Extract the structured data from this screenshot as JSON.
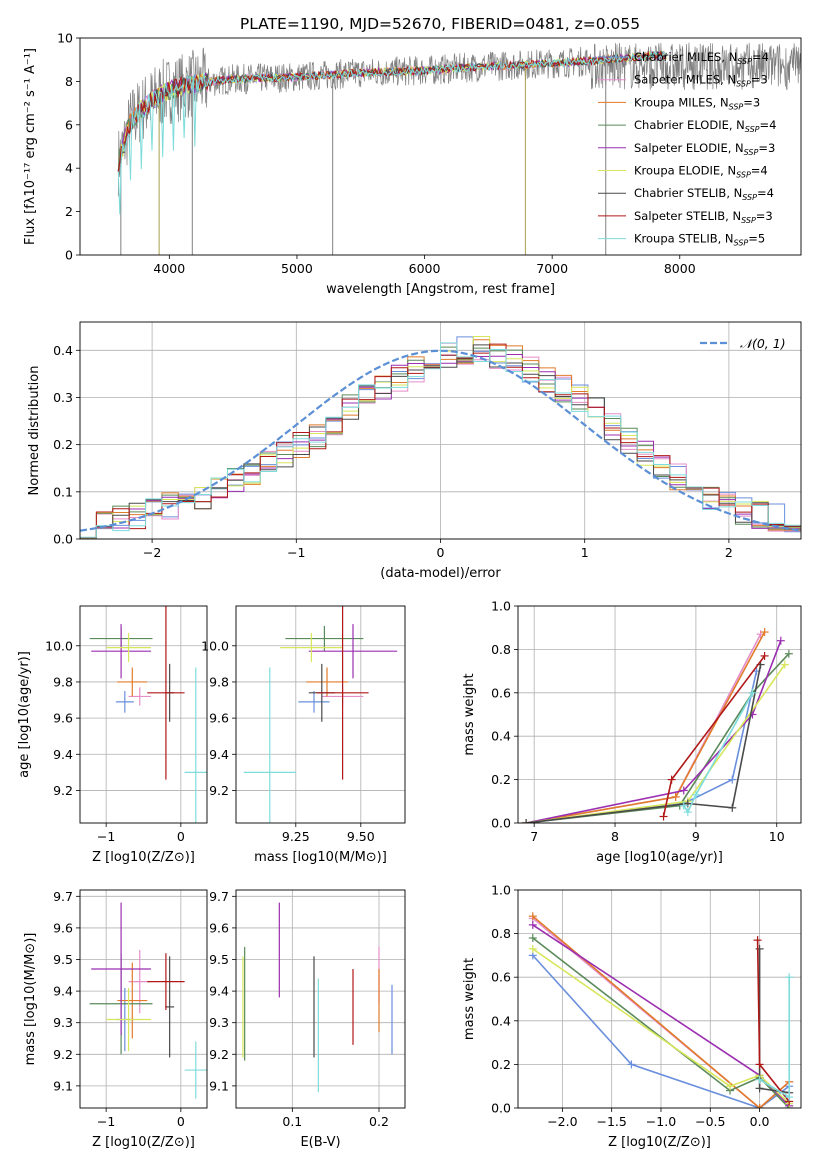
{
  "figure": {
    "title": "PLATE=1190, MJD=52670, FIBERID=0481, z=0.055"
  },
  "colors": {
    "Chabrier MILES": "#6a8fdc",
    "Salpeter MILES": "#e58ec9",
    "Kroupa MILES": "#e07b2a",
    "Chabrier ELODIE": "#5a8a5a",
    "Salpeter ELODIE": "#9b2fb0",
    "Kroupa ELODIE": "#d7e65a",
    "Chabrier STELIB": "#4a4a4a",
    "Salpeter STELIB": "#b01818",
    "Kroupa STELIB": "#7fdcdc",
    "data": "#808080",
    "normal": "#5b8fd6"
  },
  "chart_data": [
    {
      "id": "spectrum",
      "type": "line",
      "title": "PLATE=1190, MJD=52670, FIBERID=0481, z=0.055",
      "xlabel": "wavelength [Angstrom, rest frame]",
      "ylabel": "Flux [fλ10⁻¹⁷ erg cm⁻² s⁻¹ A⁻¹]",
      "xlim": [
        3300,
        8950
      ],
      "ylim": [
        0,
        10
      ],
      "xticks": [
        4000,
        5000,
        6000,
        7000,
        8000
      ],
      "yticks": [
        0,
        2,
        4,
        6,
        8,
        10
      ],
      "legend_position": "right",
      "legend": [
        {
          "name": "Chabrier MILES, N",
          "sub": "SSP",
          "tail": "=4"
        },
        {
          "name": "Salpeter MILES, N",
          "sub": "SSP",
          "tail": "=3"
        },
        {
          "name": "Kroupa MILES, N",
          "sub": "SSP",
          "tail": "=3"
        },
        {
          "name": "Chabrier ELODIE, N",
          "sub": "SSP",
          "tail": "=4"
        },
        {
          "name": "Salpeter ELODIE, N",
          "sub": "SSP",
          "tail": "=3"
        },
        {
          "name": "Kroupa ELODIE, N",
          "sub": "SSP",
          "tail": "=4"
        },
        {
          "name": "Chabrier STELIB, N",
          "sub": "SSP",
          "tail": "=4"
        },
        {
          "name": "Salpeter STELIB, N",
          "sub": "SSP",
          "tail": "=3"
        },
        {
          "name": "Kroupa STELIB, N",
          "sub": "SSP",
          "tail": "=5"
        }
      ],
      "model_continuum": {
        "x": [
          3600,
          3650,
          3700,
          3800,
          3900,
          4000,
          4200,
          4500,
          5000,
          5500,
          6000,
          6500,
          6900,
          7200,
          7400,
          7600,
          7800
        ],
        "y": [
          4.3,
          5.2,
          6.2,
          6.8,
          7.3,
          7.6,
          7.9,
          8.1,
          8.2,
          8.4,
          8.5,
          8.7,
          8.8,
          8.9,
          9.0,
          9.1,
          9.2
        ]
      }
    },
    {
      "id": "residuals",
      "type": "histogram",
      "xlabel": "(data-model)/error",
      "ylabel": "Normed distribution",
      "xlim": [
        -2.5,
        2.5
      ],
      "ylim": [
        0,
        0.46
      ],
      "xticks": [
        -2,
        -1,
        0,
        1,
        2
      ],
      "yticks": [
        0.0,
        0.1,
        0.2,
        0.3,
        0.4
      ],
      "legend_position": "top-right",
      "normal_label": "𝒩(0, 1)",
      "mean_bins": [
        0.03,
        0.035,
        0.04,
        0.05,
        0.06,
        0.07,
        0.08,
        0.09,
        0.1,
        0.12,
        0.14,
        0.16,
        0.18,
        0.2,
        0.22,
        0.25,
        0.28,
        0.3,
        0.32,
        0.34,
        0.36,
        0.38,
        0.39,
        0.4,
        0.4,
        0.39,
        0.38,
        0.36,
        0.34,
        0.32,
        0.3,
        0.27,
        0.24,
        0.21,
        0.18,
        0.15,
        0.13,
        0.11,
        0.09,
        0.075,
        0.06,
        0.05,
        0.045,
        0.04
      ]
    },
    {
      "id": "age-vs-Z",
      "type": "errorbar",
      "xlabel": "Z [log10(Z/Z⊙)]",
      "ylabel": "age  [log10(age/yr)]",
      "xlim": [
        -1.35,
        0.35
      ],
      "ylim": [
        9.02,
        10.22
      ],
      "xticks": [
        -1,
        0
      ],
      "yticks": [
        9.2,
        9.4,
        9.6,
        9.8,
        10.0
      ],
      "points": [
        {
          "series": "Chabrier MILES",
          "x": -0.75,
          "xerr": 0.12,
          "y": 9.69,
          "yerr": 0.06
        },
        {
          "series": "Salpeter MILES",
          "x": -0.55,
          "xerr": 0.15,
          "y": 9.72,
          "yerr": 0.05
        },
        {
          "series": "Kroupa MILES",
          "x": -0.65,
          "xerr": 0.2,
          "y": 9.8,
          "yerr": 0.08
        },
        {
          "series": "Chabrier ELODIE",
          "x": -0.8,
          "xerr": 0.42,
          "y": 10.04,
          "yerr": 0.06
        },
        {
          "series": "Salpeter ELODIE",
          "x": -0.8,
          "xerr": 0.4,
          "y": 9.97,
          "yerr": 0.15
        },
        {
          "series": "Kroupa ELODIE",
          "x": -0.7,
          "xerr": 0.3,
          "y": 9.99,
          "yerr": 0.08
        },
        {
          "series": "Chabrier STELIB",
          "x": -0.15,
          "xerr": 0.06,
          "y": 9.74,
          "yerr": 0.16
        },
        {
          "series": "Salpeter STELIB",
          "x": -0.2,
          "xerr": 0.25,
          "y": 9.74,
          "yerr": 0.48
        },
        {
          "series": "Kroupa STELIB",
          "x": 0.2,
          "xerr": 0.15,
          "y": 9.3,
          "yerr": 0.58
        }
      ]
    },
    {
      "id": "age-vs-mass",
      "type": "errorbar",
      "xlabel": "mass [log10(M/M⊙)]",
      "ylabel": "",
      "xlim": [
        9.02,
        9.67
      ],
      "ylim": [
        9.02,
        10.22
      ],
      "xticks": [
        9.25,
        9.5
      ],
      "yticks": [
        9.2,
        9.4,
        9.6,
        9.8,
        10.0
      ],
      "points": [
        {
          "series": "Chabrier MILES",
          "x": 9.32,
          "xerr": 0.06,
          "y": 9.69,
          "yerr": 0.06
        },
        {
          "series": "Salpeter MILES",
          "x": 9.43,
          "xerr": 0.08,
          "y": 9.72,
          "yerr": 0.05
        },
        {
          "series": "Kroupa MILES",
          "x": 9.37,
          "xerr": 0.08,
          "y": 9.8,
          "yerr": 0.08
        },
        {
          "series": "Chabrier ELODIE",
          "x": 9.36,
          "xerr": 0.15,
          "y": 10.04,
          "yerr": 0.07
        },
        {
          "series": "Salpeter ELODIE",
          "x": 9.47,
          "xerr": 0.17,
          "y": 9.97,
          "yerr": 0.15
        },
        {
          "series": "Kroupa ELODIE",
          "x": 9.31,
          "xerr": 0.12,
          "y": 9.99,
          "yerr": 0.08
        },
        {
          "series": "Chabrier STELIB",
          "x": 9.35,
          "xerr": 0.05,
          "y": 9.74,
          "yerr": 0.16
        },
        {
          "series": "Salpeter STELIB",
          "x": 9.43,
          "xerr": 0.1,
          "y": 9.74,
          "yerr": 0.48
        },
        {
          "series": "Kroupa STELIB",
          "x": 9.15,
          "xerr": 0.1,
          "y": 9.3,
          "yerr": 0.58
        }
      ]
    },
    {
      "id": "massweight-vs-age",
      "type": "line",
      "xlabel": "age  [log10(age/yr)]",
      "ylabel": "mass weight",
      "xlim": [
        6.8,
        10.3
      ],
      "ylim": [
        0,
        1
      ],
      "xticks": [
        7,
        8,
        9,
        10
      ],
      "yticks": [
        0.0,
        0.2,
        0.4,
        0.6,
        0.8,
        1.0
      ],
      "series": [
        {
          "name": "Chabrier MILES",
          "x": [
            6.9,
            8.85,
            9.45,
            9.75
          ],
          "y": [
            0.0,
            0.09,
            0.2,
            0.7
          ]
        },
        {
          "name": "Salpeter MILES",
          "x": [
            6.9,
            8.75,
            9.8
          ],
          "y": [
            0.0,
            0.12,
            0.87
          ]
        },
        {
          "name": "Kroupa MILES",
          "x": [
            6.9,
            8.75,
            9.85
          ],
          "y": [
            0.0,
            0.12,
            0.88
          ]
        },
        {
          "name": "Chabrier ELODIE",
          "x": [
            6.9,
            8.8,
            9.7,
            10.15
          ],
          "y": [
            0.0,
            0.08,
            0.6,
            0.78
          ]
        },
        {
          "name": "Salpeter ELODIE",
          "x": [
            6.9,
            8.85,
            9.7,
            10.05
          ],
          "y": [
            0.0,
            0.15,
            0.5,
            0.84
          ]
        },
        {
          "name": "Kroupa ELODIE",
          "x": [
            6.9,
            8.9,
            10.1
          ],
          "y": [
            0.0,
            0.1,
            0.73
          ]
        },
        {
          "name": "Chabrier STELIB",
          "x": [
            6.9,
            8.9,
            9.45,
            9.8
          ],
          "y": [
            0.0,
            0.09,
            0.07,
            0.73
          ]
        },
        {
          "name": "Salpeter STELIB",
          "x": [
            8.6,
            8.7,
            9.85
          ],
          "y": [
            0.03,
            0.2,
            0.77
          ]
        },
        {
          "name": "Kroupa STELIB",
          "x": [
            8.85,
            8.9,
            9.0,
            9.7
          ],
          "y": [
            0.08,
            0.05,
            0.13,
            0.6
          ]
        }
      ]
    },
    {
      "id": "mass-vs-Z",
      "type": "errorbar",
      "xlabel": "Z [log10(Z/Z⊙)]",
      "ylabel": "mass [log10(M/M⊙)]",
      "xlim": [
        -1.35,
        0.35
      ],
      "ylim": [
        9.03,
        9.72
      ],
      "xticks": [
        -1,
        0
      ],
      "yticks": [
        9.1,
        9.2,
        9.3,
        9.4,
        9.5,
        9.6,
        9.7
      ],
      "points": [
        {
          "series": "Chabrier MILES",
          "x": -0.75,
          "xerr": 0.12,
          "y": 9.31,
          "yerr": 0.1
        },
        {
          "series": "Salpeter MILES",
          "x": -0.55,
          "xerr": 0.15,
          "y": 9.43,
          "yerr": 0.1
        },
        {
          "series": "Kroupa MILES",
          "x": -0.65,
          "xerr": 0.2,
          "y": 9.37,
          "yerr": 0.12
        },
        {
          "series": "Chabrier ELODIE",
          "x": -0.8,
          "xerr": 0.42,
          "y": 9.36,
          "yerr": 0.16
        },
        {
          "series": "Salpeter ELODIE",
          "x": -0.8,
          "xerr": 0.4,
          "y": 9.47,
          "yerr": 0.21
        },
        {
          "series": "Kroupa ELODIE",
          "x": -0.7,
          "xerr": 0.3,
          "y": 9.31,
          "yerr": 0.1
        },
        {
          "series": "Chabrier STELIB",
          "x": -0.15,
          "xerr": 0.06,
          "y": 9.35,
          "yerr": 0.16
        },
        {
          "series": "Salpeter STELIB",
          "x": -0.2,
          "xerr": 0.25,
          "y": 9.43,
          "yerr": 0.09
        },
        {
          "series": "Kroupa STELIB",
          "x": 0.2,
          "xerr": 0.15,
          "y": 9.15,
          "yerr": 0.09
        }
      ]
    },
    {
      "id": "mass-vs-EBV",
      "type": "errorbar",
      "xlabel": "E(B-V)",
      "ylabel": "",
      "xlim": [
        0.035,
        0.23
      ],
      "ylim": [
        9.03,
        9.72
      ],
      "xticks": [
        0.1,
        0.2
      ],
      "yticks": [
        9.1,
        9.2,
        9.3,
        9.4,
        9.5,
        9.6,
        9.7
      ],
      "points": [
        {
          "series": "Chabrier MILES",
          "x": 0.215,
          "y": 9.31,
          "yerr": 0.11
        },
        {
          "series": "Salpeter MILES",
          "x": 0.2,
          "y": 9.45,
          "yerr": 0.09
        },
        {
          "series": "Kroupa MILES",
          "x": 0.2,
          "y": 9.37,
          "yerr": 0.1
        },
        {
          "series": "Chabrier ELODIE",
          "x": 0.045,
          "y": 9.36,
          "yerr": 0.18
        },
        {
          "series": "Salpeter ELODIE",
          "x": 0.085,
          "y": 9.53,
          "yerr": 0.15
        },
        {
          "series": "Kroupa ELODIE",
          "x": 0.043,
          "y": 9.35,
          "yerr": 0.16
        },
        {
          "series": "Chabrier STELIB",
          "x": 0.125,
          "y": 9.35,
          "yerr": 0.16
        },
        {
          "series": "Salpeter STELIB",
          "x": 0.17,
          "y": 9.35,
          "yerr": 0.12
        },
        {
          "series": "Kroupa STELIB",
          "x": 0.13,
          "y": 9.26,
          "yerr": 0.18
        }
      ]
    },
    {
      "id": "massweight-vs-Z",
      "type": "line",
      "xlabel": "Z [log10(Z/Z⊙)]",
      "ylabel": "mass weight",
      "xlim": [
        -2.45,
        0.42
      ],
      "ylim": [
        0,
        1
      ],
      "xticks": [
        -2.0,
        -1.5,
        -1.0,
        -0.5,
        0.0
      ],
      "yticks": [
        0.0,
        0.2,
        0.4,
        0.6,
        0.8,
        1.0
      ],
      "series": [
        {
          "name": "Chabrier MILES",
          "x": [
            -2.3,
            -1.3,
            0.0,
            0.3
          ],
          "y": [
            0.7,
            0.2,
            0.0,
            0.1
          ]
        },
        {
          "name": "Salpeter MILES",
          "x": [
            -2.3,
            0.0,
            0.3
          ],
          "y": [
            0.87,
            0.0,
            0.12
          ]
        },
        {
          "name": "Kroupa MILES",
          "x": [
            -2.3,
            0.0,
            0.3
          ],
          "y": [
            0.88,
            0.0,
            0.12
          ]
        },
        {
          "name": "Chabrier ELODIE",
          "x": [
            -2.3,
            -0.3,
            0.0,
            0.3
          ],
          "y": [
            0.78,
            0.08,
            0.14,
            0.0
          ]
        },
        {
          "name": "Salpeter ELODIE",
          "x": [
            -2.3,
            0.0,
            0.3
          ],
          "y": [
            0.84,
            0.15,
            0.01
          ]
        },
        {
          "name": "Kroupa ELODIE",
          "x": [
            -2.3,
            -0.3,
            0.0,
            0.3
          ],
          "y": [
            0.73,
            0.1,
            0.15,
            0.02
          ]
        },
        {
          "name": "Chabrier STELIB",
          "x": [
            -0.0,
            0.0,
            0.3
          ],
          "y": [
            0.73,
            0.09,
            0.07
          ]
        },
        {
          "name": "Salpeter STELIB",
          "x": [
            -0.02,
            0.0,
            0.3
          ],
          "y": [
            0.77,
            0.2,
            0.03
          ]
        },
        {
          "name": "Kroupa STELIB",
          "x": [
            0.0,
            0.3,
            0.3
          ],
          "y": [
            0.13,
            0.05,
            0.6
          ]
        }
      ]
    }
  ]
}
